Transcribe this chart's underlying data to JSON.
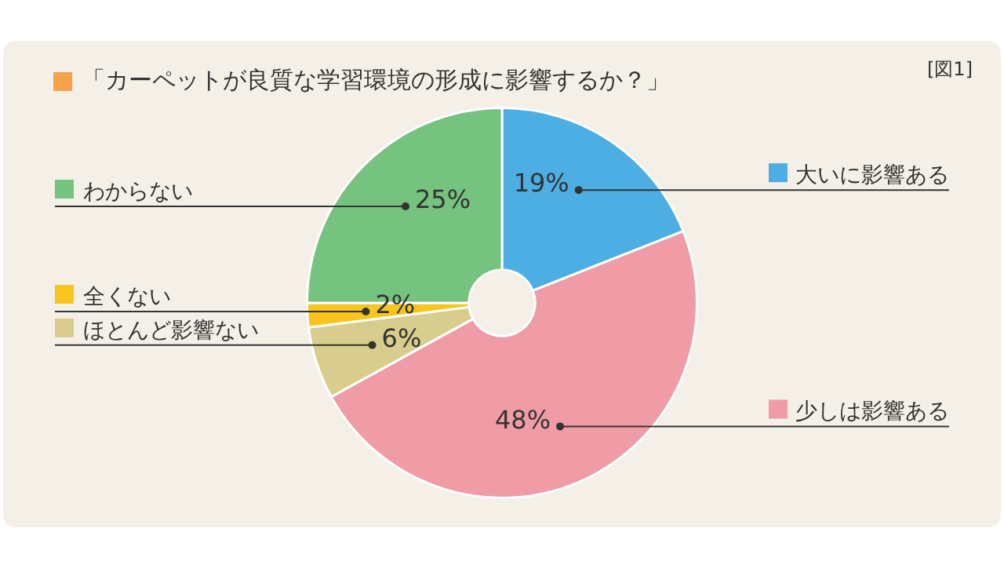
{
  "chart_data": {
    "type": "donut",
    "title": "「カーペットが良質な学習環境の形成に影響するか？」",
    "annotations": [
      "[図1]"
    ],
    "categories": [
      "大いに影響ある",
      "少しは影響ある",
      "ほとんど影響ない",
      "全くない",
      "わからない"
    ],
    "values": [
      19,
      48,
      6,
      2,
      25
    ],
    "colors": [
      "#4daee3",
      "#f09ca6",
      "#d8cd8c",
      "#f7c51e",
      "#76c27f"
    ],
    "value_labels": [
      "19%",
      "48%",
      "6%",
      "2%",
      "25%"
    ],
    "legend": "left"
  }
}
